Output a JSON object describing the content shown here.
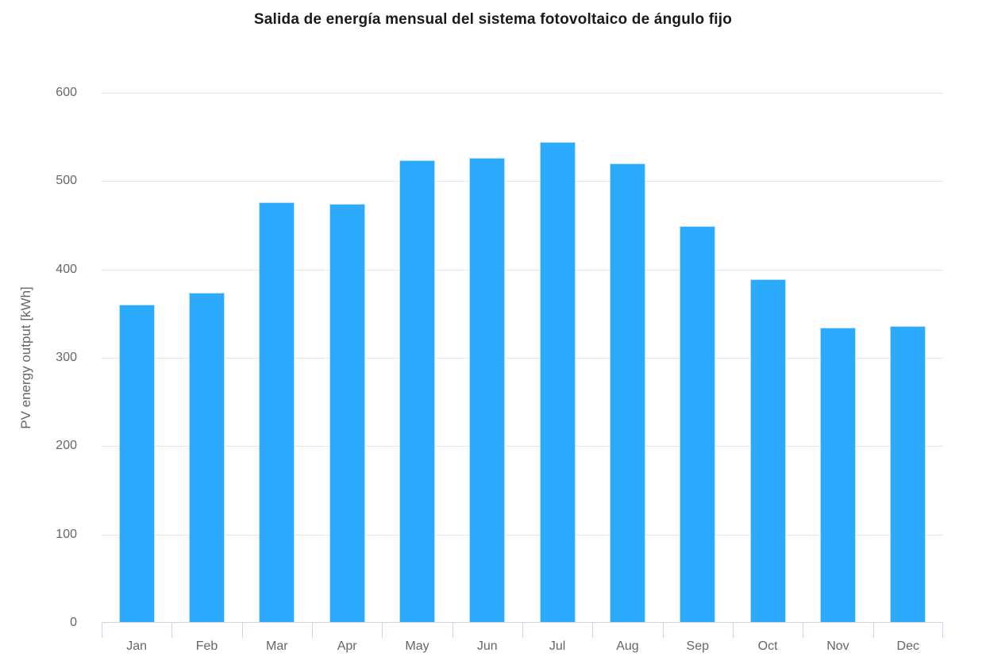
{
  "chart_data": {
    "type": "bar",
    "title": "Salida de energía mensual del sistema fotovoltaico de ángulo fijo",
    "xlabel": "",
    "ylabel": "PV energy output [kWh]",
    "categories": [
      "Jan",
      "Feb",
      "Mar",
      "Apr",
      "May",
      "Jun",
      "Jul",
      "Aug",
      "Sep",
      "Oct",
      "Nov",
      "Dec"
    ],
    "values": [
      360,
      374,
      476,
      474,
      524,
      526,
      544,
      520,
      449,
      389,
      334,
      336
    ],
    "ylim": [
      0,
      600
    ],
    "y_ticks": [
      0,
      100,
      200,
      300,
      400,
      500,
      600
    ],
    "grid": true,
    "legend": false,
    "colors": {
      "bar_color": "#2BAAFE",
      "grid_color": "#E6E6E6",
      "axis_color": "#CCD6EB",
      "label_color": "#666666",
      "title_color": "#1A1A1A"
    }
  }
}
